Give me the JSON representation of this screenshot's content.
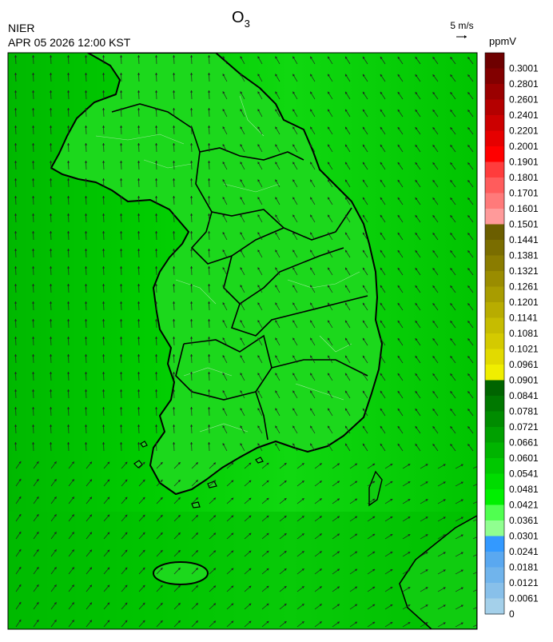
{
  "header": {
    "title": "O",
    "title_subscript": "3",
    "agency": "NIER",
    "datetime": "APR 05 2026 12:00 KST",
    "wind_scale": "5 m/s"
  },
  "colorbar": {
    "unit": "ppmV",
    "levels": [
      {
        "value": 0.3001,
        "color": "#6e0000"
      },
      {
        "value": 0.2801,
        "color": "#820000"
      },
      {
        "value": 0.2601,
        "color": "#9a0000"
      },
      {
        "value": 0.2401,
        "color": "#b40000"
      },
      {
        "value": 0.2201,
        "color": "#cc0000"
      },
      {
        "value": 0.2001,
        "color": "#e60000"
      },
      {
        "value": 0.1901,
        "color": "#ff0000"
      },
      {
        "value": 0.1801,
        "color": "#ff3c3c"
      },
      {
        "value": 0.1701,
        "color": "#ff5c5c"
      },
      {
        "value": 0.1601,
        "color": "#ff7a7a"
      },
      {
        "value": 0.1501,
        "color": "#ff9a9a"
      },
      {
        "value": 0.1441,
        "color": "#6b5e00"
      },
      {
        "value": 0.1381,
        "color": "#7a6d00"
      },
      {
        "value": 0.1321,
        "color": "#8a7c00"
      },
      {
        "value": 0.1261,
        "color": "#9a8c00"
      },
      {
        "value": 0.1201,
        "color": "#a89c00"
      },
      {
        "value": 0.1141,
        "color": "#b8ac00"
      },
      {
        "value": 0.1081,
        "color": "#c6bc00"
      },
      {
        "value": 0.1021,
        "color": "#d4ca00"
      },
      {
        "value": 0.0961,
        "color": "#e2da00"
      },
      {
        "value": 0.0901,
        "color": "#f0ee00"
      },
      {
        "value": 0.0841,
        "color": "#006400"
      },
      {
        "value": 0.0781,
        "color": "#007800"
      },
      {
        "value": 0.0721,
        "color": "#008c00"
      },
      {
        "value": 0.0661,
        "color": "#00a000"
      },
      {
        "value": 0.0601,
        "color": "#00b400"
      },
      {
        "value": 0.0541,
        "color": "#00c800"
      },
      {
        "value": 0.0481,
        "color": "#00dc00"
      },
      {
        "value": 0.0421,
        "color": "#00f000"
      },
      {
        "value": 0.0361,
        "color": "#50ff50"
      },
      {
        "value": 0.0301,
        "color": "#90ff90"
      },
      {
        "value": 0.0241,
        "color": "#3399ff"
      },
      {
        "value": 0.0181,
        "color": "#5aa8f0"
      },
      {
        "value": 0.0121,
        "color": "#70b4ec"
      },
      {
        "value": 0.0061,
        "color": "#88c0ea"
      },
      {
        "value": 0,
        "color": "#a4d0ea"
      }
    ]
  }
}
